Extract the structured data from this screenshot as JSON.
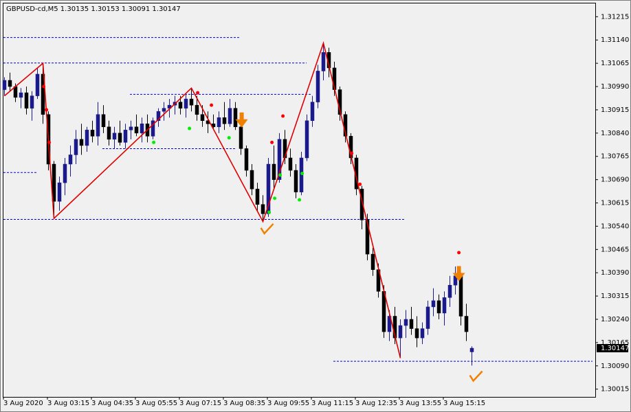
{
  "chart_data": {
    "type": "candlestick",
    "title": "GBPUSD-cd,M5  1.30135 1.30153 1.30091 1.30147",
    "categories": [
      "3 Aug 2020",
      null,
      null,
      null,
      null,
      null,
      null,
      null,
      "3 Aug 03:15",
      null,
      null,
      null,
      null,
      null,
      null,
      null,
      "3 Aug 04:35",
      null,
      null,
      null,
      null,
      null,
      null,
      null,
      "3 Aug 05:55",
      null,
      null,
      null,
      null,
      null,
      null,
      null,
      "3 Aug 07:15",
      null,
      null,
      null,
      null,
      null,
      null,
      null,
      "3 Aug 08:35",
      null,
      null,
      null,
      null,
      null,
      null,
      null,
      "3 Aug 09:55",
      null,
      null,
      null,
      null,
      null,
      null,
      null,
      "3 Aug 11:15",
      null,
      null,
      null,
      null,
      null,
      null,
      null,
      "3 Aug 12:35",
      null,
      null,
      null,
      null,
      null,
      null,
      null,
      "3 Aug 13:55",
      null,
      null,
      null,
      null,
      null,
      null,
      null,
      "3 Aug 15:15",
      null,
      null,
      null,
      null,
      null
    ],
    "open": [
      1.3098,
      1.3101,
      1.3099,
      1.30955,
      1.3097,
      1.3092,
      1.3096,
      1.3103,
      1.309,
      1.3074,
      1.3062,
      1.3068,
      1.3074,
      1.3077,
      1.3082,
      1.308,
      1.3085,
      1.3083,
      1.309,
      1.3086,
      1.3082,
      1.3084,
      1.3081,
      1.3085,
      1.3086,
      1.3084,
      1.3087,
      1.3083,
      1.3088,
      1.3091,
      1.3092,
      1.3093,
      1.3094,
      1.3092,
      1.3095,
      1.3093,
      1.309,
      1.3088,
      1.3087,
      1.3086,
      1.3089,
      1.3087,
      1.3092,
      1.3086,
      1.3079,
      1.3072,
      1.3066,
      1.3061,
      1.3058,
      1.3074,
      1.3069,
      1.3082,
      1.3076,
      1.3072,
      1.3065,
      1.3076,
      1.3088,
      1.3094,
      1.3104,
      1.311,
      1.3105,
      1.3098,
      1.309,
      1.3083,
      1.3076,
      1.3066,
      1.3056,
      1.3045,
      1.304,
      1.3033,
      1.302,
      1.3025,
      1.3018,
      1.3022,
      1.3024,
      1.3021,
      1.3018,
      1.3021,
      1.3028,
      1.303,
      1.3026,
      1.3031,
      1.3035,
      1.3038,
      1.3025,
      1.30135
    ],
    "high": [
      1.3102,
      1.31035,
      1.31,
      1.30985,
      1.3099,
      1.30975,
      1.3105,
      1.31065,
      1.3091,
      1.3075,
      1.307,
      1.3076,
      1.308,
      1.3085,
      1.3087,
      1.3086,
      1.3088,
      1.3094,
      1.3093,
      1.3088,
      1.3086,
      1.3088,
      1.3087,
      1.3088,
      1.309,
      1.3089,
      1.309,
      1.3089,
      1.3092,
      1.3094,
      1.3095,
      1.3096,
      1.3096,
      1.30965,
      1.30985,
      1.3096,
      1.3093,
      1.3091,
      1.309,
      1.3091,
      1.3094,
      1.3095,
      1.3094,
      1.3088,
      1.308,
      1.3074,
      1.3068,
      1.3064,
      1.3076,
      1.308,
      1.3084,
      1.3085,
      1.3079,
      1.3074,
      1.3078,
      1.309,
      1.3096,
      1.3106,
      1.3113,
      1.31115,
      1.3107,
      1.3099,
      1.3091,
      1.3084,
      1.3077,
      1.3067,
      1.3058,
      1.3047,
      1.3042,
      1.3035,
      1.3027,
      1.3028,
      1.3024,
      1.3027,
      1.3028,
      1.3025,
      1.3023,
      1.303,
      1.3034,
      1.3032,
      1.3033,
      1.3038,
      1.3041,
      1.3039,
      1.3029,
      1.30153
    ],
    "low": [
      1.3096,
      1.30975,
      1.3094,
      1.3092,
      1.309,
      1.3088,
      1.3095,
      1.3087,
      1.3072,
      1.30565,
      1.3059,
      1.3064,
      1.307,
      1.3074,
      1.3077,
      1.3078,
      1.3081,
      1.308,
      1.3084,
      1.308,
      1.3079,
      1.308,
      1.3079,
      1.3082,
      1.3083,
      1.3081,
      1.3081,
      1.3082,
      1.3086,
      1.3088,
      1.3089,
      1.309,
      1.309,
      1.3089,
      1.3091,
      1.3088,
      1.3086,
      1.3084,
      1.3085,
      1.3084,
      1.3085,
      1.3086,
      1.3085,
      1.3077,
      1.307,
      1.3064,
      1.3059,
      1.30555,
      1.3057,
      1.3066,
      1.3068,
      1.3074,
      1.307,
      1.3063,
      1.3064,
      1.3075,
      1.3086,
      1.3092,
      1.3101,
      1.3102,
      1.3096,
      1.3088,
      1.3081,
      1.3074,
      1.3064,
      1.3053,
      1.3043,
      1.3038,
      1.3031,
      1.3018,
      1.3017,
      1.3016,
      1.30115,
      1.3018,
      1.3019,
      1.3015,
      1.3016,
      1.3019,
      1.3025,
      1.3024,
      1.3022,
      1.3028,
      1.3032,
      1.3022,
      1.3017,
      1.30091
    ],
    "close": [
      1.3101,
      1.3099,
      1.30955,
      1.3097,
      1.3092,
      1.3096,
      1.3103,
      1.309,
      1.3074,
      1.3062,
      1.3068,
      1.3074,
      1.3077,
      1.3082,
      1.308,
      1.3085,
      1.3083,
      1.309,
      1.3086,
      1.3082,
      1.3084,
      1.3081,
      1.3085,
      1.3086,
      1.3084,
      1.3087,
      1.3083,
      1.3088,
      1.3091,
      1.3092,
      1.3093,
      1.3094,
      1.3092,
      1.3095,
      1.3093,
      1.309,
      1.3088,
      1.3087,
      1.3086,
      1.3089,
      1.3087,
      1.3092,
      1.3086,
      1.3079,
      1.3072,
      1.3066,
      1.3061,
      1.3058,
      1.3074,
      1.3069,
      1.3082,
      1.3076,
      1.3072,
      1.3065,
      1.3076,
      1.3088,
      1.3094,
      1.3104,
      1.311,
      1.3105,
      1.3098,
      1.309,
      1.3083,
      1.3076,
      1.3066,
      1.3056,
      1.3045,
      1.304,
      1.3033,
      1.302,
      1.3025,
      1.3018,
      1.3022,
      1.3024,
      1.3021,
      1.3018,
      1.3021,
      1.3028,
      1.303,
      1.3026,
      1.3031,
      1.3035,
      1.3038,
      1.3025,
      1.302,
      1.30147
    ],
    "up_color": "#1a1a8c",
    "down_color": "#000000",
    "ylim": [
      1.2999,
      1.3126
    ],
    "yticks": [
      1.31215,
      {
        "value": 1.3114,
        "label": "1.31140"
      },
      1.31065,
      {
        "value": 1.3099,
        "label": "1.30990"
      },
      1.30915,
      {
        "value": 1.3084,
        "label": "1.30840"
      },
      1.30765,
      {
        "value": 1.3069,
        "label": "1.30690"
      },
      1.30615,
      {
        "value": 1.3054,
        "label": "1.30540"
      },
      1.30465,
      {
        "value": 1.3039,
        "label": "1.30390"
      },
      1.30315,
      {
        "value": 1.3024,
        "label": "1.30240"
      },
      1.30165,
      {
        "value": 1.3009,
        "label": "1.30090"
      },
      1.30015
    ],
    "levels": [
      {
        "price": 1.31149,
        "from": 0,
        "to": 43
      },
      {
        "price": 1.31067,
        "from": 0,
        "to": 55
      },
      {
        "price": 1.30966,
        "from": 23,
        "to": 56
      },
      {
        "price": 1.30791,
        "from": 18,
        "to": 42
      },
      {
        "price": 1.30714,
        "from": 0,
        "to": 6
      },
      {
        "price": 1.30563,
        "from": 0,
        "to": 73
      },
      {
        "price": 1.30106,
        "from": 60,
        "to": 107
      }
    ],
    "level_color": "#0000cc",
    "zigzag": {
      "color": "#e00000",
      "index": [
        0,
        7,
        9,
        34,
        47,
        58,
        72
      ],
      "price": [
        1.3096,
        1.31065,
        1.30565,
        1.30985,
        1.30555,
        1.3113,
        1.30115
      ]
    },
    "sell_dots": {
      "color": "#ff0000",
      "index": [
        7.2,
        7.7,
        8.2,
        35.2,
        37.7,
        48.7,
        50.7,
        63.2,
        64.7,
        82.7
      ],
      "price": [
        1.3099,
        1.30915,
        1.3081,
        1.3097,
        1.3093,
        1.3081,
        1.30895,
        1.30775,
        1.30675,
        1.30455
      ]
    },
    "buy_dots": {
      "color": "#00ee00",
      "index": [
        27.2,
        33.7,
        40.9,
        48.2,
        49.2,
        50.2,
        53.7,
        54.2
      ],
      "price": [
        1.3081,
        1.30855,
        1.30825,
        1.30585,
        1.3063,
        1.30705,
        1.30625,
        1.3071
      ]
    },
    "down_arrows": {
      "color": "#f08000",
      "index": [
        43.2,
        82.7
      ],
      "price": [
        1.3088,
        1.30385
      ]
    },
    "checks": {
      "color": "#f08000",
      "index": [
        47.7,
        85.7
      ],
      "price": [
        1.3053,
        1.30055
      ]
    }
  }
}
